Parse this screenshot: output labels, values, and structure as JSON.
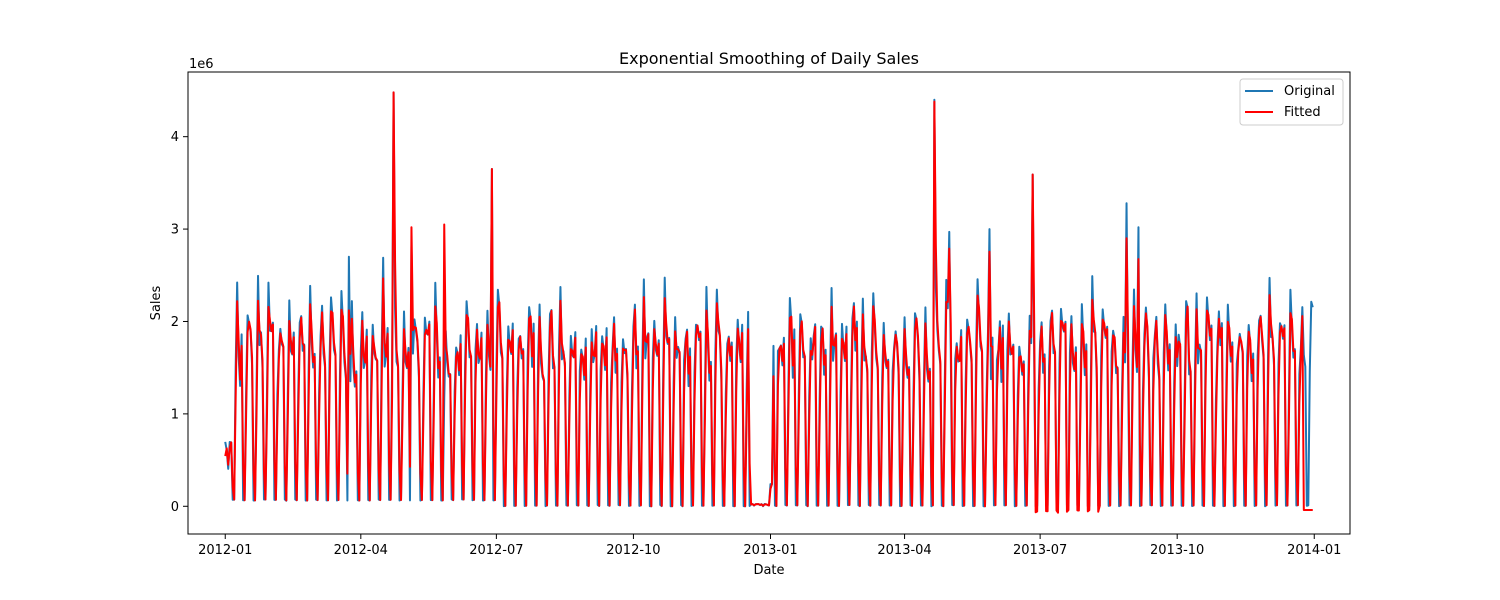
{
  "chart_data": {
    "type": "line",
    "title": "Exponential Smoothing of Daily Sales",
    "xlabel": "Date",
    "ylabel": "Sales",
    "y_offset_label": "1e6",
    "y_scale": 1000000,
    "xlim": [
      "2011-12-07",
      "2014-01-25"
    ],
    "ylim": [
      -300000,
      4700000
    ],
    "x_ticks": [
      "2012-01-01",
      "2012-04-01",
      "2012-07-01",
      "2012-10-01",
      "2013-01-01",
      "2013-04-01",
      "2013-07-01",
      "2013-10-01",
      "2014-01-01"
    ],
    "x_tick_labels": [
      "2012-01",
      "2012-04",
      "2012-07",
      "2012-10",
      "2013-01",
      "2013-04",
      "2013-07",
      "2013-10",
      "2014-01"
    ],
    "y_ticks": [
      0,
      1000000,
      2000000,
      3000000,
      4000000
    ],
    "y_tick_labels": [
      "0",
      "1",
      "2",
      "3",
      "4"
    ],
    "grid": false,
    "legend_position": "top-right",
    "x_range": [
      "2012-01-01",
      "2013-12-31"
    ],
    "series": [
      {
        "name": "Original",
        "color": "#1f77b4",
        "notes": "daily sales, weekly cycle; roughly 0 to 2.3e6 with isolated spikes",
        "spikes": [
          {
            "date": "2012-04-23",
            "value": 4480000
          },
          {
            "date": "2012-06-28",
            "value": 3650000
          },
          {
            "date": "2012-03-24",
            "value": 2700000
          },
          {
            "date": "2012-05-05",
            "value": 2810000
          },
          {
            "date": "2012-04-16",
            "value": 2690000
          },
          {
            "date": "2013-04-21",
            "value": 4400000
          },
          {
            "date": "2013-06-26",
            "value": 3590000
          },
          {
            "date": "2013-08-28",
            "value": 3280000
          },
          {
            "date": "2013-09-05",
            "value": 3020000
          },
          {
            "date": "2013-05-01",
            "value": 2970000
          },
          {
            "date": "2013-05-28",
            "value": 3000000
          }
        ]
      },
      {
        "name": "Fitted",
        "color": "#ff0000",
        "notes": "exponential smoothing fit following Original closely",
        "spikes": [
          {
            "date": "2012-04-23",
            "value": 4480000
          },
          {
            "date": "2012-06-28",
            "value": 3650000
          },
          {
            "date": "2012-05-05",
            "value": 3020000
          },
          {
            "date": "2012-05-27",
            "value": 3050000
          },
          {
            "date": "2013-04-21",
            "value": 4380000
          },
          {
            "date": "2013-06-26",
            "value": 3590000
          }
        ]
      }
    ]
  }
}
